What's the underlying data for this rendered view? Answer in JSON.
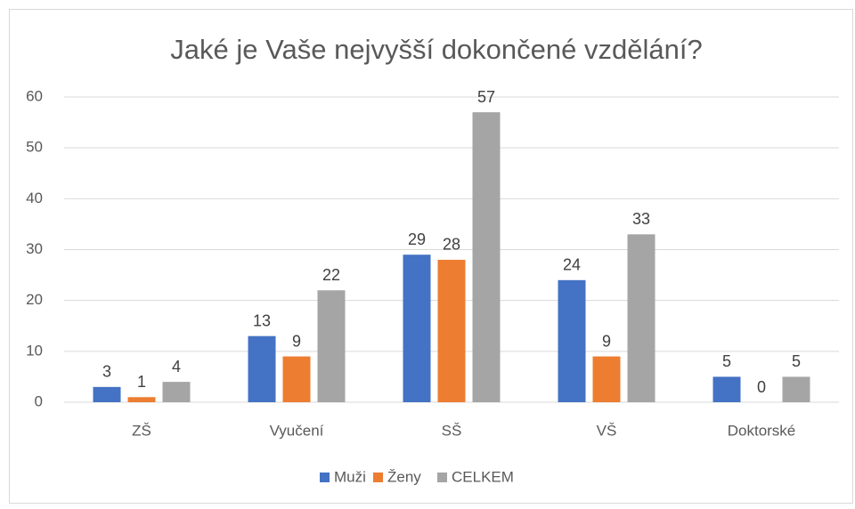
{
  "chart_data": {
    "type": "bar",
    "title": "Jaké je Vaše nejvyšší dokončené vzdělání?",
    "categories": [
      "ZŠ",
      "Vyučení",
      "SŠ",
      "VŠ",
      "Doktorské"
    ],
    "series": [
      {
        "name": "Muži",
        "color": "#4472c4",
        "values": [
          3,
          13,
          29,
          24,
          5
        ]
      },
      {
        "name": "Ženy",
        "color": "#ed7d31",
        "values": [
          1,
          9,
          28,
          9,
          0
        ]
      },
      {
        "name": "CELKEM",
        "color": "#a5a5a5",
        "values": [
          4,
          22,
          57,
          33,
          5
        ]
      }
    ],
    "ylim": [
      0,
      60
    ],
    "yticks": [
      0,
      10,
      20,
      30,
      40,
      50,
      60
    ],
    "grid": true,
    "legend": "bottom"
  }
}
